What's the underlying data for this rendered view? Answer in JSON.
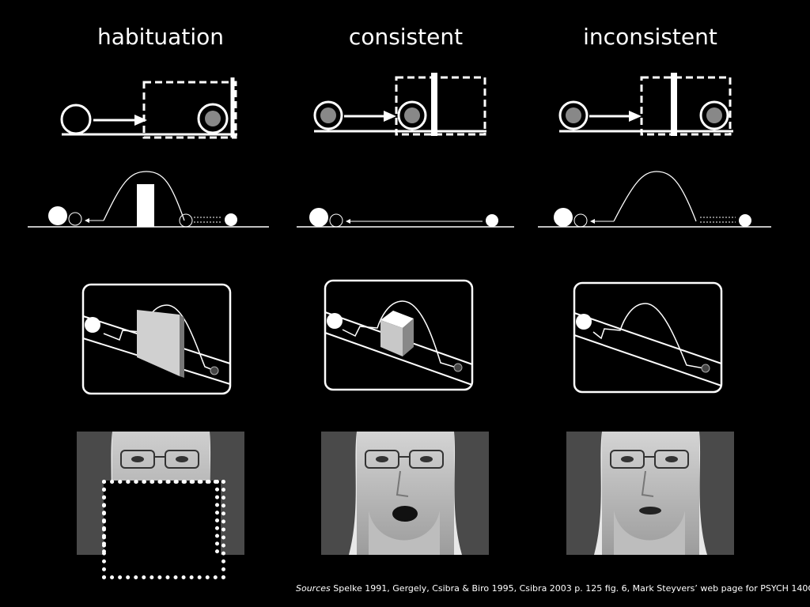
{
  "columns": [
    {
      "key": "habituation",
      "title": "habituation"
    },
    {
      "key": "consistent",
      "title": "consistent"
    },
    {
      "key": "inconsistent",
      "title": "inconsistent"
    }
  ],
  "sources": {
    "prefix": "Sources",
    "text": " Spelke 1991, Gergely, Csibra & Biro 1995, Csibra 2003 p. 125 fig. 6, Mark Steyvers’ web page for PSYCH 140C"
  },
  "colors": {
    "background": "#000000",
    "foreground": "#ffffff",
    "occluder_fill": "#d0d0d0"
  }
}
